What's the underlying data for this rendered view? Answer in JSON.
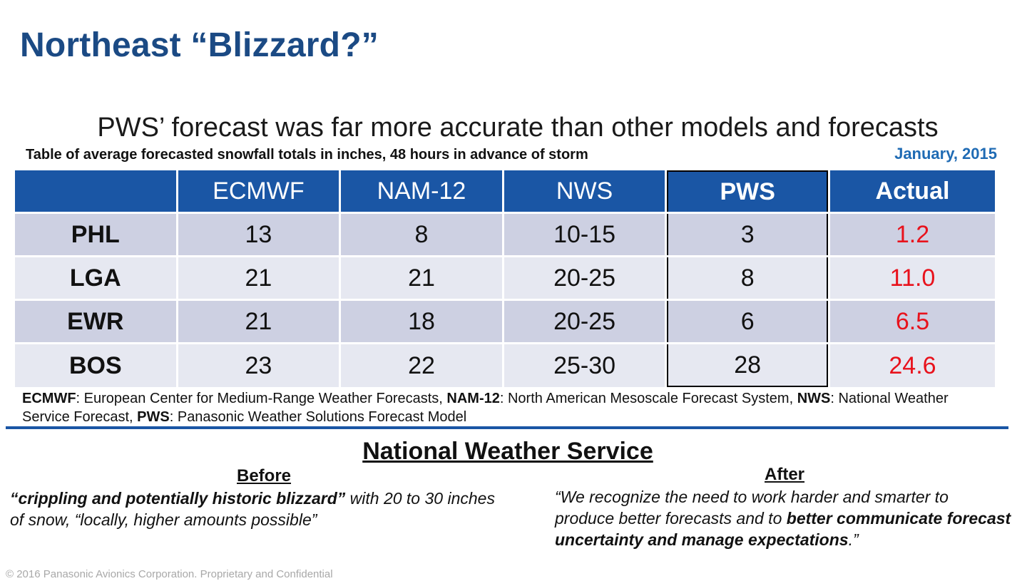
{
  "slide": {
    "title": "Northeast “Blizzard?”",
    "subtitle": "PWS’ forecast was far more accurate than other models and forecasts",
    "table_caption": "Table of average forecasted snowfall totals in inches, 48 hours in advance of storm",
    "date": "January, 2015"
  },
  "table": {
    "columns": [
      "",
      "ECMWF",
      "NAM-12",
      "NWS",
      "PWS",
      "Actual"
    ],
    "rows": [
      [
        "PHL",
        "13",
        "8",
        "10-15",
        "3",
        "1.2"
      ],
      [
        "LGA",
        "21",
        "21",
        "20-25",
        "8",
        "11.0"
      ],
      [
        "EWR",
        "21",
        "18",
        "20-25",
        "6",
        "6.5"
      ],
      [
        "BOS",
        "23",
        "22",
        "25-30",
        "28",
        "24.6"
      ]
    ]
  },
  "legend": {
    "ecmwf_abbr": "ECMWF",
    "ecmwf_def": ": European Center for Medium-Range Weather Forecasts, ",
    "nam_abbr": "NAM-12",
    "nam_def": ": North American Mesoscale Forecast System, ",
    "nws_abbr": "NWS",
    "nws_def": ": National Weather Service Forecast, ",
    "pws_abbr": "PWS",
    "pws_def": ": Panasonic Weather Solutions Forecast Model"
  },
  "nws": {
    "heading": "National Weather Service",
    "before_heading": "Before",
    "before_quote_bold": "“crippling and potentially historic blizzard”",
    "before_quote_rest": " with 20 to 30 inches of snow, “locally, higher amounts possible”",
    "after_heading": "After",
    "after_quote_start": "“We recognize the need to work harder and smarter to produce better forecasts and to ",
    "after_quote_bold": "better communicate forecast uncertainty and manage expectations",
    "after_quote_end": ".”"
  },
  "footer": "© 2016 Panasonic Avionics Corporation. Proprietary and Confidential",
  "colors": {
    "title": "#1b4a84",
    "header_bg": "#1a56a5",
    "row_odd": "#cdd0e2",
    "row_even": "#e6e8f1",
    "actual_text": "#e8121c",
    "date_text": "#1f6bb4"
  }
}
